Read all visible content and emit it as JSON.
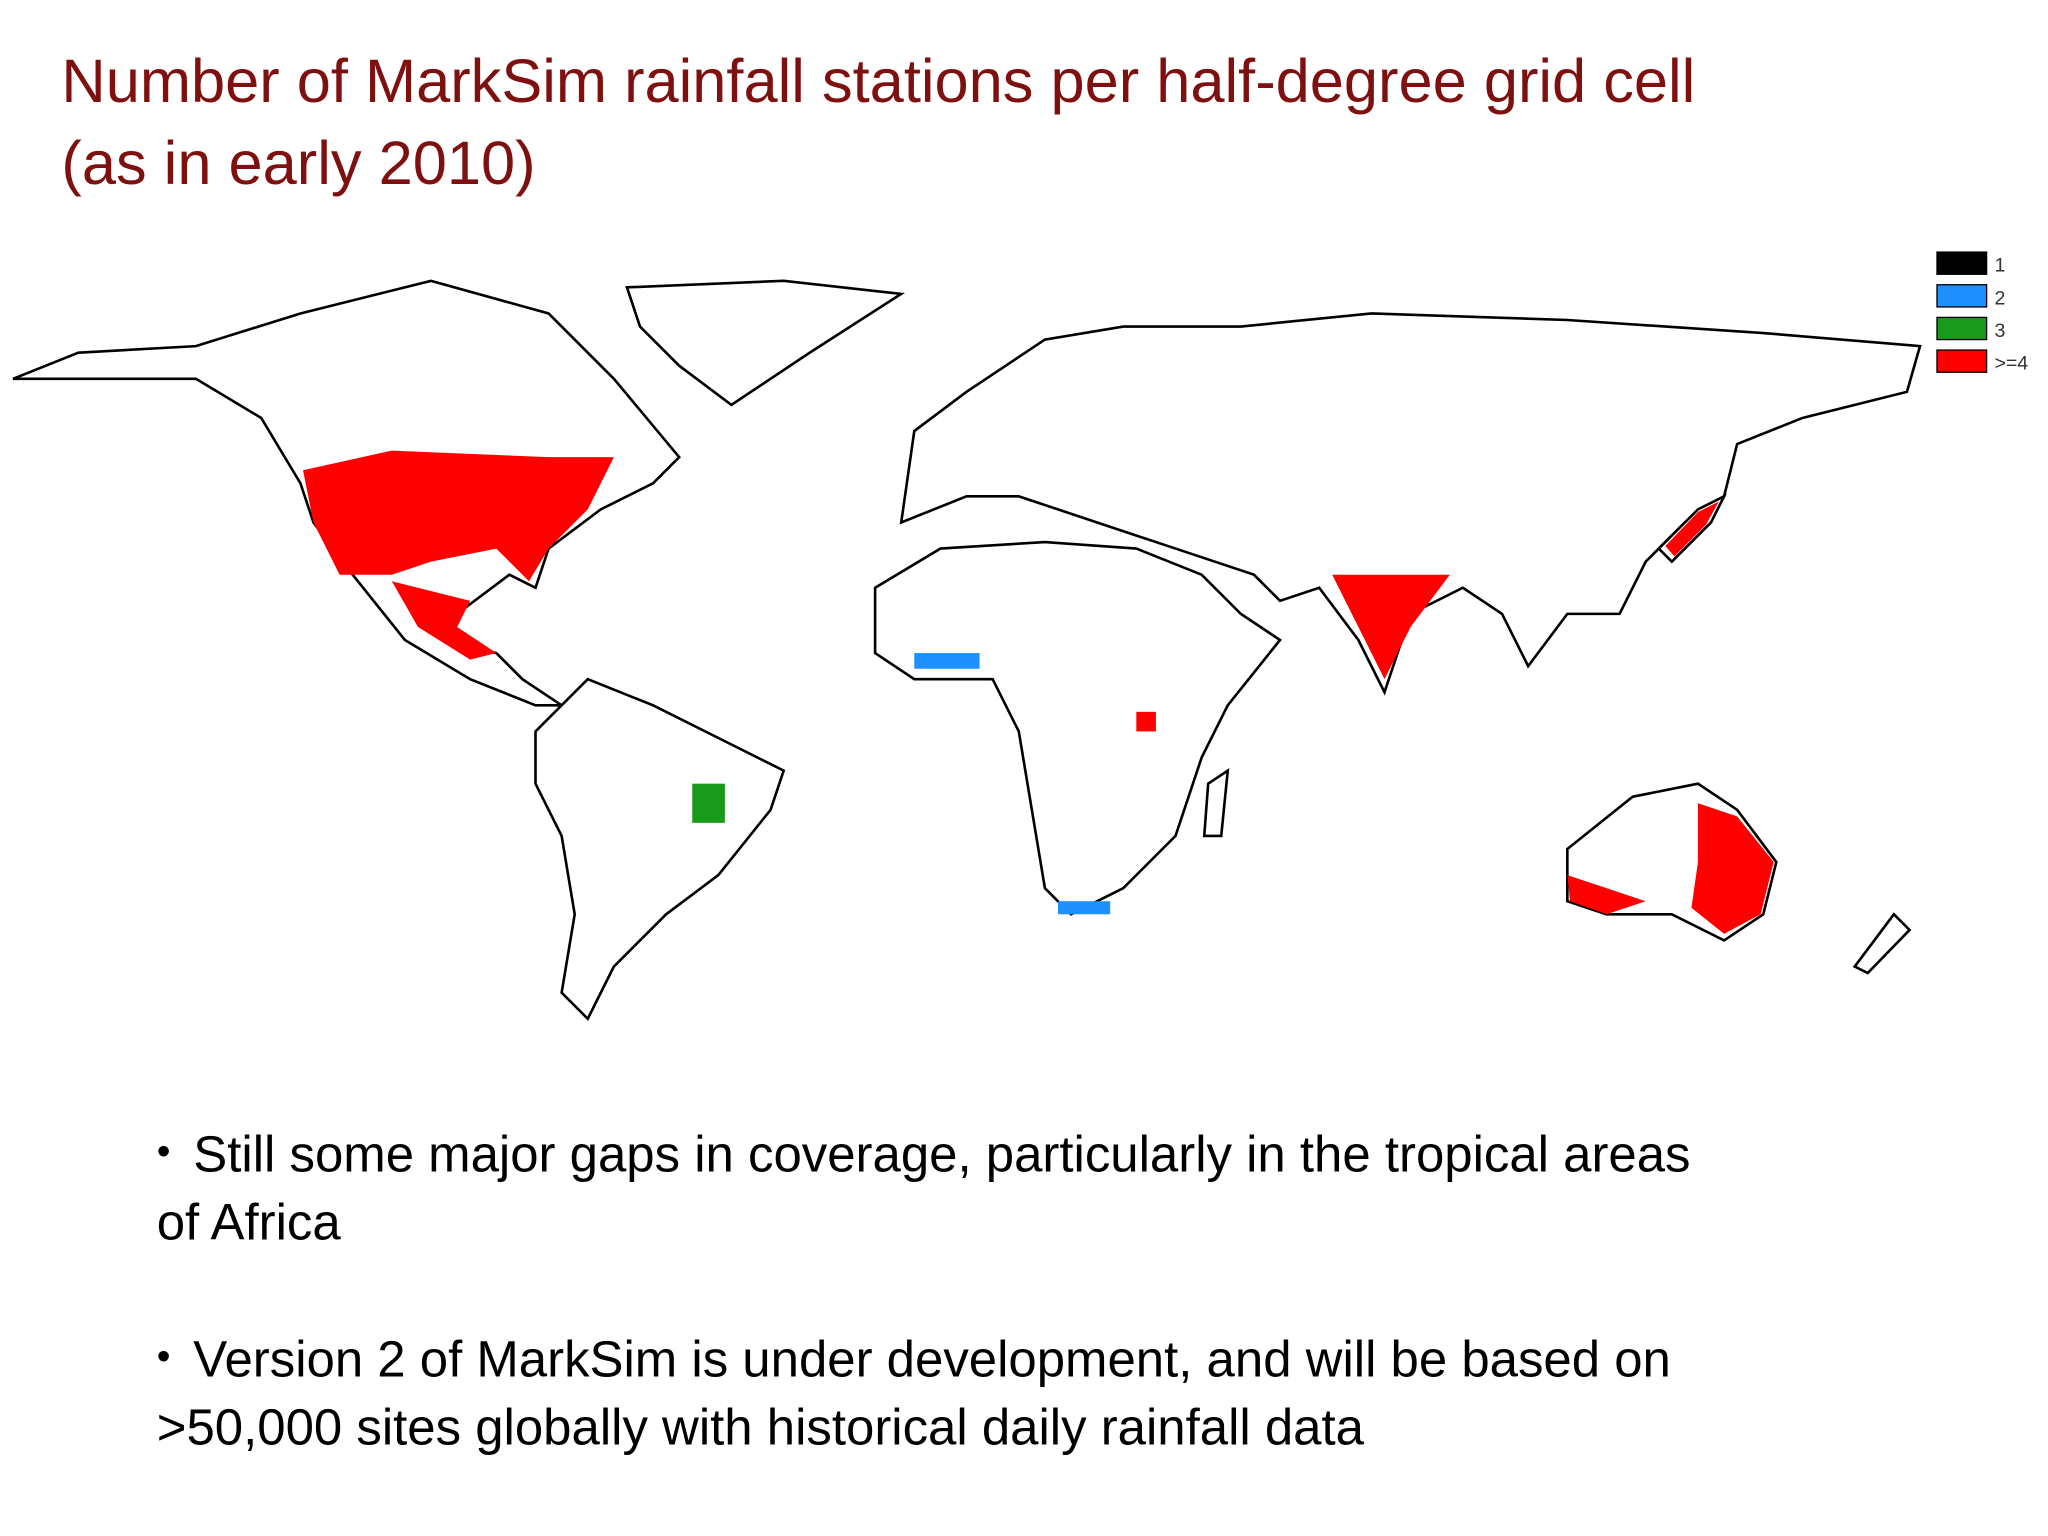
{
  "title": [
    "Number of MarkSim rainfall stations per half-degree grid cell",
    "(as in early 2010)"
  ],
  "legend": [
    {
      "label": "1",
      "color": "#000000"
    },
    {
      "label": "2",
      "color": "#1e90ff"
    },
    {
      "label": "3",
      "color": "#1a9a1a"
    },
    {
      "label": ">=4",
      "color": "#ff0000"
    }
  ],
  "bullets": [
    [
      "Still some major gaps in coverage, particularly in the tropical areas",
      "of Africa"
    ],
    [
      "Version 2 of MarkSim is under development, and will be based on",
      ">50,000 sites globally with historical daily rainfall data"
    ]
  ]
}
